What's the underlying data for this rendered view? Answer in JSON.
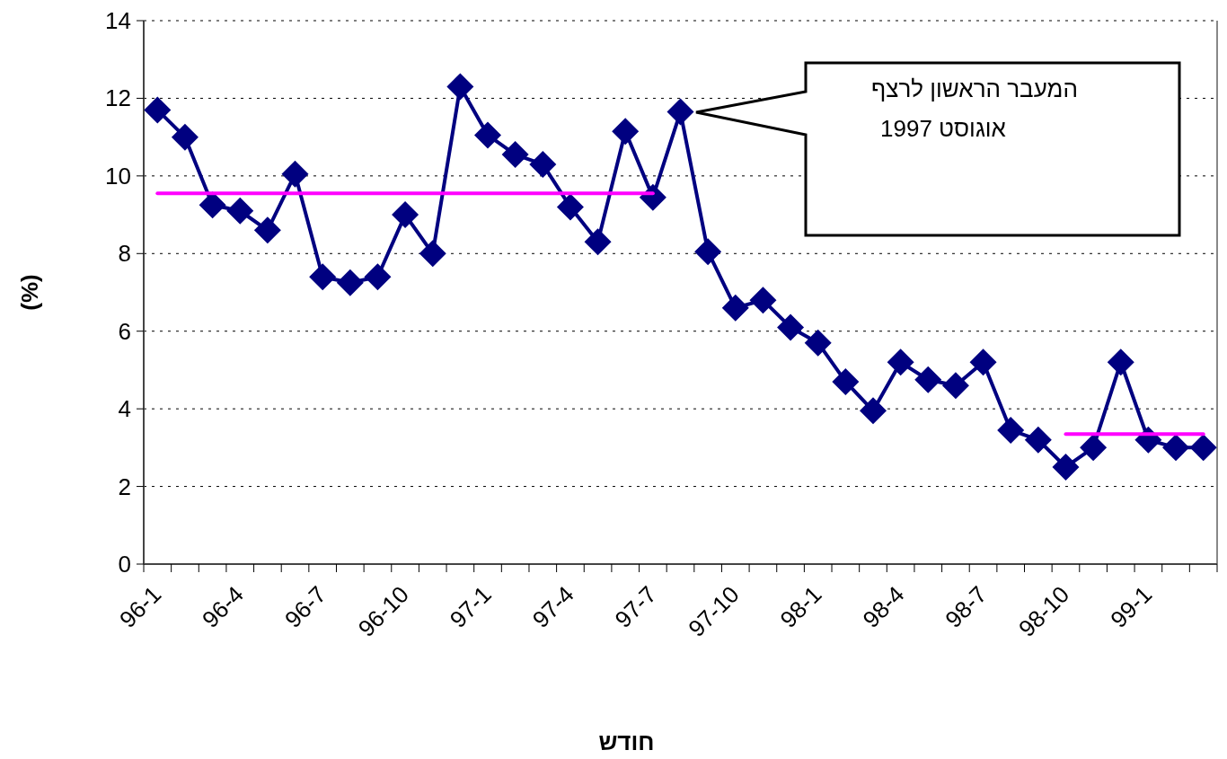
{
  "chart_data": {
    "type": "line",
    "xlabel": "חודש",
    "ylabel": "(%)",
    "categories": [
      "96-1",
      null,
      null,
      "96-4",
      null,
      null,
      "96-7",
      null,
      null,
      "96-10",
      null,
      null,
      "97-1",
      null,
      null,
      "97-4",
      null,
      null,
      "97-7",
      null,
      null,
      "97-10",
      null,
      null,
      "98-1",
      null,
      null,
      "98-4",
      null,
      null,
      "98-7",
      null,
      null,
      "98-10",
      null,
      null,
      "99-1",
      null,
      null
    ],
    "series": [
      {
        "color": "#000080",
        "marker": "diamond",
        "values": [
          11.7,
          11.0,
          9.25,
          9.1,
          8.6,
          10.05,
          7.4,
          7.25,
          7.4,
          9.0,
          8.0,
          12.3,
          11.05,
          10.55,
          10.3,
          9.2,
          8.3,
          11.15,
          9.45,
          11.65,
          8.05,
          6.6,
          6.8,
          6.1,
          5.7,
          4.7,
          3.95,
          5.2,
          4.75,
          4.6,
          5.2,
          3.45,
          3.2,
          2.5,
          3.0,
          5.2,
          3.2,
          3.0,
          3.0
        ]
      },
      {
        "color": "#ff00ff",
        "marker": "none",
        "values": [
          9.55,
          9.55,
          9.55,
          9.55,
          9.55,
          9.55,
          9.55,
          9.55,
          9.55,
          9.55,
          9.55,
          9.55,
          9.55,
          9.55,
          9.55,
          9.55,
          9.55,
          9.55,
          9.55,
          null,
          null,
          null,
          null,
          null,
          null,
          null,
          null,
          null,
          null,
          null,
          null,
          null,
          null,
          null,
          null,
          null,
          null,
          null,
          null
        ]
      },
      {
        "color": "#ff00ff",
        "marker": "none",
        "values": [
          null,
          null,
          null,
          null,
          null,
          null,
          null,
          null,
          null,
          null,
          null,
          null,
          null,
          null,
          null,
          null,
          null,
          null,
          null,
          null,
          null,
          null,
          null,
          null,
          null,
          null,
          null,
          null,
          null,
          null,
          null,
          null,
          null,
          3.35,
          3.35,
          3.35,
          3.35,
          3.35,
          3.35
        ]
      }
    ],
    "annotations": [
      "המעבר הראשון לרצף\nאוגוסט 1997"
    ],
    "ylim": [
      0,
      14
    ],
    "yticks": [
      0,
      2,
      4,
      6,
      8,
      10,
      12,
      14
    ],
    "grid": "y",
    "line_style": "solid"
  }
}
